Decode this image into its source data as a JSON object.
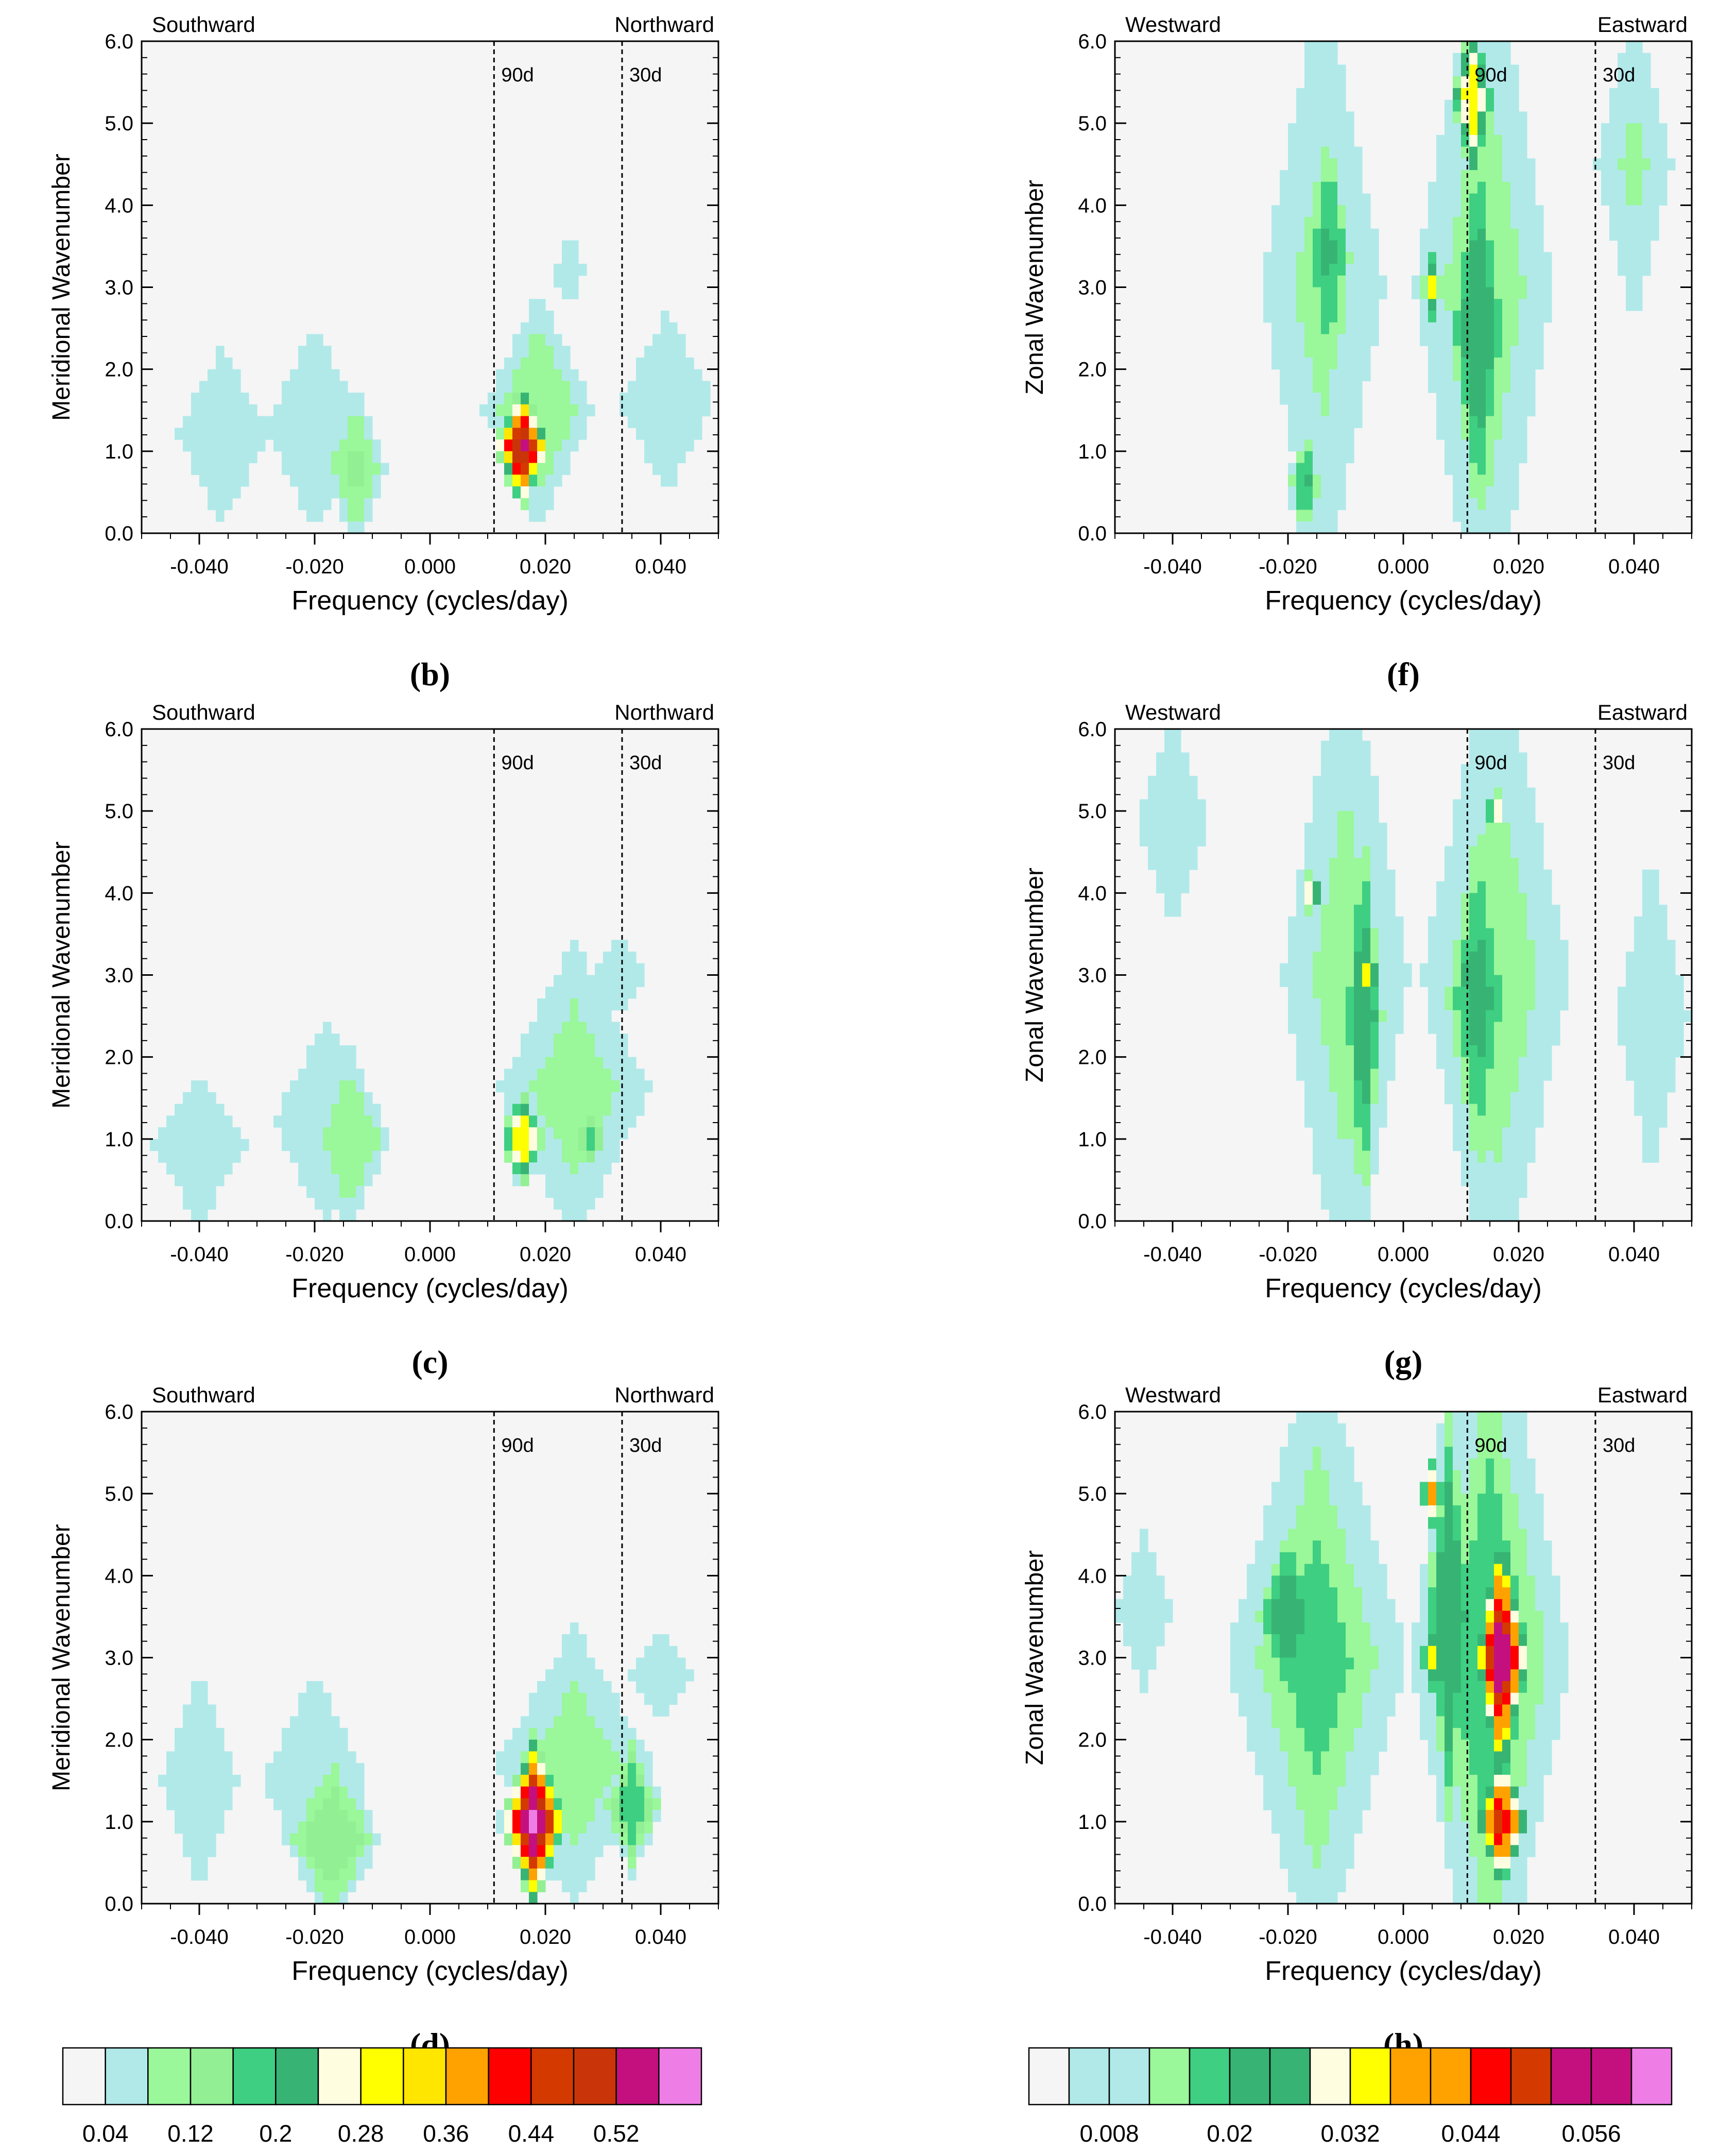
{
  "chart_data": [
    {
      "id": "b",
      "type": "heatmap",
      "panel_label": "(b)",
      "xlabel": "Frequency (cycles/day)",
      "ylabel": "Meridional Wavenumber",
      "xlim": [
        -0.05,
        0.05
      ],
      "ylim": [
        0,
        6
      ],
      "xticks": [
        "-0.040",
        "-0.020",
        "0.000",
        "0.020",
        "0.040"
      ],
      "yticks": [
        "0.0",
        "1.0",
        "2.0",
        "3.0",
        "4.0",
        "5.0",
        "6.0"
      ],
      "left_direction": "Southward",
      "right_direction": "Northward",
      "period_lines": [
        {
          "freq": 0.0111,
          "label": "90d"
        },
        {
          "freq": 0.0333,
          "label": "30d"
        }
      ],
      "colorbar": "meridional",
      "blobs": [
        {
          "f": -0.036,
          "k": 1.2,
          "w": 0.014,
          "h": 1.9,
          "v": 0.06
        },
        {
          "f": -0.02,
          "k": 1.3,
          "w": 0.013,
          "h": 2.0,
          "v": 0.07
        },
        {
          "f": -0.013,
          "k": 0.8,
          "w": 0.007,
          "h": 1.2,
          "v": 0.13
        },
        {
          "f": 0.019,
          "k": 1.5,
          "w": 0.012,
          "h": 1.8,
          "v": 0.12
        },
        {
          "f": 0.041,
          "k": 1.6,
          "w": 0.013,
          "h": 1.7,
          "v": 0.07
        },
        {
          "f": 0.024,
          "k": 3.2,
          "w": 0.006,
          "h": 1.1,
          "v": 0.05
        },
        {
          "f": 0.016,
          "k": 1.05,
          "w": 0.0055,
          "h": 0.85,
          "v": 0.54
        }
      ]
    },
    {
      "id": "f",
      "type": "heatmap",
      "panel_label": "(f)",
      "xlabel": "Frequency (cycles/day)",
      "ylabel": "Zonal Wavenumber",
      "xlim": [
        -0.05,
        0.05
      ],
      "ylim": [
        0,
        6
      ],
      "xticks": [
        "-0.040",
        "-0.020",
        "0.000",
        "0.020",
        "0.040"
      ],
      "yticks": [
        "0.0",
        "1.0",
        "2.0",
        "3.0",
        "4.0",
        "5.0",
        "6.0"
      ],
      "left_direction": "Westward",
      "right_direction": "Eastward",
      "period_lines": [
        {
          "freq": 0.0111,
          "label": "90d"
        },
        {
          "freq": 0.0333,
          "label": "30d"
        }
      ],
      "colorbar": "zonal",
      "blobs": [
        {
          "f": -0.014,
          "k": 3.0,
          "w": 0.013,
          "h": 4.5,
          "v": 0.014
        },
        {
          "f": -0.013,
          "k": 3.4,
          "w": 0.006,
          "h": 2.4,
          "v": 0.021
        },
        {
          "f": -0.017,
          "k": 0.6,
          "w": 0.004,
          "h": 1.0,
          "v": 0.021
        },
        {
          "f": 0.014,
          "k": 3.0,
          "w": 0.014,
          "h": 5.5,
          "v": 0.016
        },
        {
          "f": 0.013,
          "k": 2.5,
          "w": 0.007,
          "h": 3.5,
          "v": 0.024
        },
        {
          "f": 0.04,
          "k": 4.5,
          "w": 0.008,
          "h": 2.5,
          "v": 0.013
        },
        {
          "f": 0.005,
          "k": 3.0,
          "w": 0.0022,
          "h": 0.5,
          "v": 0.034
        },
        {
          "f": 0.012,
          "k": 5.3,
          "w": 0.0045,
          "h": 1.3,
          "v": 0.036
        }
      ]
    },
    {
      "id": "c",
      "type": "heatmap",
      "panel_label": "(c)",
      "xlabel": "Frequency (cycles/day)",
      "ylabel": "Meridional Wavenumber",
      "xlim": [
        -0.05,
        0.05
      ],
      "ylim": [
        0,
        6
      ],
      "xticks": [
        "-0.040",
        "-0.020",
        "0.000",
        "0.020",
        "0.040"
      ],
      "yticks": [
        "0.0",
        "1.0",
        "2.0",
        "3.0",
        "4.0",
        "5.0",
        "6.0"
      ],
      "left_direction": "Southward",
      "right_direction": "Northward",
      "period_lines": [
        {
          "freq": 0.0111,
          "label": "90d"
        },
        {
          "freq": 0.0333,
          "label": "30d"
        }
      ],
      "colorbar": "meridional",
      "blobs": [
        {
          "f": -0.04,
          "k": 0.9,
          "w": 0.015,
          "h": 1.6,
          "v": 0.06
        },
        {
          "f": -0.018,
          "k": 1.2,
          "w": 0.014,
          "h": 2.0,
          "v": 0.07
        },
        {
          "f": -0.014,
          "k": 1.0,
          "w": 0.009,
          "h": 1.4,
          "v": 0.12
        },
        {
          "f": 0.025,
          "k": 1.6,
          "w": 0.017,
          "h": 2.4,
          "v": 0.1
        },
        {
          "f": 0.033,
          "k": 3.0,
          "w": 0.01,
          "h": 1.1,
          "v": 0.05
        },
        {
          "f": 0.028,
          "k": 1.0,
          "w": 0.0035,
          "h": 0.4,
          "v": 0.21
        },
        {
          "f": 0.016,
          "k": 1.0,
          "w": 0.0045,
          "h": 0.75,
          "v": 0.33
        }
      ]
    },
    {
      "id": "g",
      "type": "heatmap",
      "panel_label": "(g)",
      "xlabel": "Frequency (cycles/day)",
      "ylabel": "Zonal Wavenumber",
      "xlim": [
        -0.05,
        0.05
      ],
      "ylim": [
        0,
        6
      ],
      "xticks": [
        "-0.040",
        "-0.020",
        "0.000",
        "0.020",
        "0.040"
      ],
      "yticks": [
        "0.0",
        "1.0",
        "2.0",
        "3.0",
        "4.0",
        "5.0",
        "6.0"
      ],
      "left_direction": "Westward",
      "right_direction": "Eastward",
      "period_lines": [
        {
          "freq": 0.0111,
          "label": "90d"
        },
        {
          "freq": 0.0333,
          "label": "30d"
        }
      ],
      "colorbar": "zonal",
      "blobs": [
        {
          "f": -0.01,
          "k": 3.0,
          "w": 0.013,
          "h": 5.0,
          "v": 0.015
        },
        {
          "f": -0.007,
          "k": 2.5,
          "w": 0.005,
          "h": 3.5,
          "v": 0.024
        },
        {
          "f": 0.016,
          "k": 3.0,
          "w": 0.015,
          "h": 5.0,
          "v": 0.016
        },
        {
          "f": 0.013,
          "k": 2.7,
          "w": 0.008,
          "h": 3.2,
          "v": 0.022
        },
        {
          "f": -0.04,
          "k": 4.8,
          "w": 0.008,
          "h": 1.6,
          "v": 0.011
        },
        {
          "f": 0.043,
          "k": 2.5,
          "w": 0.008,
          "h": 2.5,
          "v": 0.011
        },
        {
          "f": -0.016,
          "k": 4.0,
          "w": 0.0025,
          "h": 0.35,
          "v": 0.034
        },
        {
          "f": -0.006,
          "k": 3.0,
          "w": 0.0025,
          "h": 0.55,
          "v": 0.036
        },
        {
          "f": 0.016,
          "k": 5.0,
          "w": 0.0022,
          "h": 0.35,
          "v": 0.034
        },
        {
          "f": 0.011,
          "k": 3.0,
          "w": 0.0018,
          "h": 0.35,
          "v": 0.03
        }
      ]
    },
    {
      "id": "d",
      "type": "heatmap",
      "panel_label": "(d)",
      "xlabel": "Frequency (cycles/day)",
      "ylabel": "Meridional Wavenumber",
      "xlim": [
        -0.05,
        0.05
      ],
      "ylim": [
        0,
        6
      ],
      "xticks": [
        "-0.040",
        "-0.020",
        "0.000",
        "0.020",
        "0.040"
      ],
      "yticks": [
        "0.0",
        "1.0",
        "2.0",
        "3.0",
        "4.0",
        "5.0",
        "6.0"
      ],
      "left_direction": "Southward",
      "right_direction": "Northward",
      "period_lines": [
        {
          "freq": 0.0111,
          "label": "90d"
        },
        {
          "freq": 0.0333,
          "label": "30d"
        }
      ],
      "colorbar": "meridional",
      "blobs": [
        {
          "f": -0.04,
          "k": 1.5,
          "w": 0.012,
          "h": 2.4,
          "v": 0.06
        },
        {
          "f": -0.02,
          "k": 1.5,
          "w": 0.016,
          "h": 2.3,
          "v": 0.06
        },
        {
          "f": -0.017,
          "k": 0.8,
          "w": 0.01,
          "h": 1.3,
          "v": 0.16
        },
        {
          "f": 0.025,
          "k": 1.7,
          "w": 0.018,
          "h": 2.2,
          "v": 0.1
        },
        {
          "f": 0.04,
          "k": 2.8,
          "w": 0.012,
          "h": 1.3,
          "v": 0.05
        },
        {
          "f": 0.035,
          "k": 1.2,
          "w": 0.006,
          "h": 1.0,
          "v": 0.2
        },
        {
          "f": 0.018,
          "k": 1.0,
          "w": 0.0065,
          "h": 1.2,
          "v": 0.58
        }
      ]
    },
    {
      "id": "h",
      "type": "heatmap",
      "panel_label": "(h)",
      "xlabel": "Frequency (cycles/day)",
      "ylabel": "Zonal Wavenumber",
      "xlim": [
        -0.05,
        0.05
      ],
      "ylim": [
        0,
        6
      ],
      "xticks": [
        "-0.040",
        "-0.020",
        "0.000",
        "0.020",
        "0.040"
      ],
      "yticks": [
        "0.0",
        "1.0",
        "2.0",
        "3.0",
        "4.0",
        "5.0",
        "6.0"
      ],
      "left_direction": "Westward",
      "right_direction": "Eastward",
      "period_lines": [
        {
          "freq": 0.0111,
          "label": "90d"
        },
        {
          "freq": 0.0333,
          "label": "30d"
        }
      ],
      "colorbar": "zonal",
      "blobs": [
        {
          "f": -0.015,
          "k": 3.0,
          "w": 0.018,
          "h": 4.5,
          "v": 0.018
        },
        {
          "f": -0.02,
          "k": 3.5,
          "w": 0.008,
          "h": 1.5,
          "v": 0.024
        },
        {
          "f": 0.015,
          "k": 3.0,
          "w": 0.016,
          "h": 5.5,
          "v": 0.02
        },
        {
          "f": 0.008,
          "k": 3.5,
          "w": 0.006,
          "h": 3.5,
          "v": 0.026
        },
        {
          "f": 0.005,
          "k": 5.0,
          "w": 0.0025,
          "h": 0.5,
          "v": 0.038
        },
        {
          "f": 0.005,
          "k": 3.0,
          "w": 0.0025,
          "h": 0.5,
          "v": 0.034
        },
        {
          "f": 0.017,
          "k": 3.0,
          "w": 0.0055,
          "h": 1.9,
          "v": 0.058
        },
        {
          "f": 0.017,
          "k": 1.0,
          "w": 0.0055,
          "h": 1.0,
          "v": 0.05
        },
        {
          "f": -0.045,
          "k": 3.6,
          "w": 0.006,
          "h": 1.2,
          "v": 0.011
        }
      ]
    }
  ],
  "colorbars": {
    "meridional": {
      "colors": [
        "#f5f5f5",
        "#b1e9e9",
        "#9af79a",
        "#93ef93",
        "#3ecf82",
        "#37b474",
        "#fffde0",
        "#ffff00",
        "#ffe600",
        "#ffa200",
        "#ff0000",
        "#d43a00",
        "#c93508",
        "#c4107f",
        "#ee7ee6"
      ],
      "boundaries": [
        0.04,
        0.08,
        0.12,
        0.16,
        0.2,
        0.24,
        0.28,
        0.32,
        0.36,
        0.4,
        0.44,
        0.48,
        0.52,
        0.56
      ],
      "labels": [
        {
          "value": 0.04,
          "text": "0.04"
        },
        {
          "value": 0.12,
          "text": "0.12"
        },
        {
          "value": 0.2,
          "text": "0.2"
        },
        {
          "value": 0.28,
          "text": "0.28"
        },
        {
          "value": 0.36,
          "text": "0.36"
        },
        {
          "value": 0.44,
          "text": "0.44"
        },
        {
          "value": 0.52,
          "text": "0.52"
        }
      ]
    },
    "zonal": {
      "colors": [
        "#f5f5f5",
        "#b1e9e9",
        "#b1e9e9",
        "#9af79a",
        "#3ecf82",
        "#37b474",
        "#37b474",
        "#fffde0",
        "#ffff00",
        "#ffa200",
        "#ffa200",
        "#ff0000",
        "#d43a00",
        "#c4107f",
        "#c4107f",
        "#ee7ee6"
      ],
      "boundaries": [
        0.004,
        0.008,
        0.012,
        0.016,
        0.02,
        0.024,
        0.028,
        0.032,
        0.036,
        0.04,
        0.044,
        0.048,
        0.052,
        0.056,
        0.06
      ],
      "labels": [
        {
          "value": 0.008,
          "text": "0.008"
        },
        {
          "value": 0.02,
          "text": "0.02"
        },
        {
          "value": 0.032,
          "text": "0.032"
        },
        {
          "value": 0.044,
          "text": "0.044"
        },
        {
          "value": 0.056,
          "text": "0.056"
        }
      ]
    }
  }
}
